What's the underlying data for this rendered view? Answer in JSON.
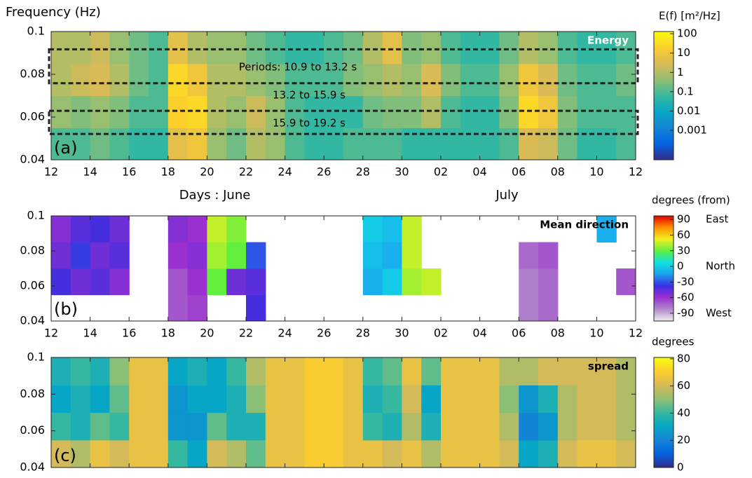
{
  "chart_data": [
    {
      "type": "heatmap",
      "ylabel": "Frequency (Hz)",
      "title": "Energy",
      "panel_label": "(a)",
      "xlabel": "Days : June",
      "xlabel2": "July",
      "x": [
        0.5,
        1.5,
        2.5,
        3.5,
        4.5,
        5.5,
        6.5,
        7.5,
        8.5,
        9.5,
        10.5,
        11.5,
        12.5,
        13.5,
        14.5,
        15.5,
        16.5,
        17.5,
        18.5,
        19.5,
        20.5,
        21.5,
        22.5,
        23.5,
        24.5,
        25.5,
        26.5,
        27.5,
        28.5,
        29.5
      ],
      "y": [
        0.0475,
        0.0625,
        0.0775,
        0.0925
      ],
      "z": [
        [
          0.1,
          0.1,
          0.2,
          0.1,
          0.05,
          0.05,
          5,
          10,
          0.5,
          0.2,
          1,
          0.5,
          0.1,
          0.05,
          0.05,
          0.1,
          0.1,
          0.1,
          0.05,
          0.05,
          0.05,
          0.05,
          0.05,
          0.1,
          3,
          2,
          0.2,
          0.05,
          0.05,
          0.1
        ],
        [
          0.5,
          0.3,
          0.5,
          0.3,
          0.1,
          0.1,
          20,
          30,
          1,
          0.5,
          2,
          0.5,
          0.1,
          0.05,
          0.05,
          0.05,
          0.2,
          0.3,
          0.3,
          1,
          0.1,
          0.05,
          0.05,
          0.3,
          30,
          10,
          0.3,
          0.1,
          0.1,
          0.1
        ],
        [
          1,
          2,
          3,
          1,
          0.2,
          0.1,
          30,
          10,
          1,
          1,
          0.5,
          0.3,
          0.1,
          0.1,
          0.1,
          0.3,
          0.5,
          1,
          0.5,
          3,
          0.3,
          0.1,
          0.1,
          0.5,
          10,
          3,
          0.2,
          0.1,
          0.1,
          0.2
        ],
        [
          1,
          1,
          2,
          0.5,
          0.2,
          0.1,
          5,
          1,
          0.5,
          0.5,
          0.2,
          0.1,
          0.05,
          0.05,
          0.1,
          0.2,
          1,
          5,
          0.3,
          0.5,
          0.1,
          0.05,
          0.05,
          0.2,
          1,
          0.5,
          0.1,
          0.05,
          0.05,
          0.1
        ]
      ],
      "xlim": [
        0,
        30
      ],
      "ylim": [
        0.04,
        0.1
      ],
      "yticks": [
        0.04,
        0.06,
        0.08,
        0.1
      ],
      "xticks": [
        {
          "value": 0,
          "label": "12"
        },
        {
          "value": 2,
          "label": "14"
        },
        {
          "value": 4,
          "label": "16"
        },
        {
          "value": 6,
          "label": "18"
        },
        {
          "value": 8,
          "label": "20"
        },
        {
          "value": 10,
          "label": "22"
        },
        {
          "value": 12,
          "label": "24"
        },
        {
          "value": 14,
          "label": "26"
        },
        {
          "value": 16,
          "label": "28"
        },
        {
          "value": 18,
          "label": "30"
        },
        {
          "value": 20,
          "label": "02"
        },
        {
          "value": 22,
          "label": "04"
        },
        {
          "value": 24,
          "label": "06"
        },
        {
          "value": 26,
          "label": "08"
        },
        {
          "value": 28,
          "label": "10"
        },
        {
          "value": 30,
          "label": "12"
        }
      ],
      "boxes": [
        {
          "label": "Periods: 10.9 to 13.2 s",
          "ylim": [
            0.0758,
            0.0917
          ]
        },
        {
          "label": "13.2 to 15.9 s"
        },
        {
          "label": "15.9 to 19.2 s",
          "ylim": [
            0.0521,
            0.0629
          ]
        }
      ],
      "colorbar": {
        "title": "E(f) [m²/Hz]",
        "log": true,
        "lim": [
          3e-05,
          130
        ],
        "ticks": [
          {
            "value": 100,
            "label": "100"
          },
          {
            "value": 10,
            "label": "10"
          },
          {
            "value": 1,
            "label": "1"
          },
          {
            "value": 0.1,
            "label": "0.1"
          },
          {
            "value": 0.01,
            "label": "0.01"
          },
          {
            "value": 0.001,
            "label": "0.001"
          }
        ],
        "colormap": [
          "#352a87",
          "#0363e1",
          "#1485d4",
          "#06a7c6",
          "#38b99e",
          "#92bf73",
          "#d9ba56",
          "#fcce2e",
          "#f9fb0e"
        ]
      }
    },
    {
      "type": "heatmap",
      "title": "Mean direction",
      "panel_label": "(b)",
      "x": [
        0.5,
        1.5,
        2.5,
        3.5,
        4.5,
        5.5,
        6.5,
        7.5,
        8.5,
        9.5,
        10.5,
        11.5,
        12.5,
        13.5,
        14.5,
        15.5,
        16.5,
        17.5,
        18.5,
        19.5,
        20.5,
        21.5,
        22.5,
        23.5,
        24.5,
        25.5,
        26.5,
        27.5,
        28.5,
        29.5
      ],
      "y": [
        0.0475,
        0.0625,
        0.0775,
        0.0925
      ],
      "z": [
        [
          null,
          null,
          null,
          null,
          null,
          null,
          -70,
          -65,
          null,
          null,
          -40,
          null,
          null,
          null,
          null,
          null,
          null,
          null,
          null,
          null,
          null,
          null,
          null,
          null,
          -80,
          -75,
          null,
          null,
          null,
          null
        ],
        [
          -40,
          -50,
          -45,
          -55,
          null,
          null,
          -70,
          -60,
          30,
          -50,
          -45,
          null,
          null,
          null,
          null,
          null,
          -10,
          0,
          40,
          45,
          null,
          null,
          null,
          null,
          -80,
          -75,
          null,
          null,
          null,
          -70
        ],
        [
          -50,
          -35,
          -50,
          -45,
          null,
          null,
          -60,
          -55,
          40,
          30,
          -30,
          null,
          null,
          null,
          null,
          null,
          -5,
          -10,
          45,
          null,
          null,
          null,
          null,
          null,
          -75,
          -70,
          null,
          null,
          null,
          null
        ],
        [
          -55,
          -45,
          -40,
          -50,
          null,
          null,
          -55,
          -60,
          45,
          35,
          null,
          null,
          null,
          null,
          null,
          null,
          0,
          -5,
          45,
          null,
          null,
          null,
          null,
          null,
          null,
          null,
          null,
          null,
          -10,
          null
        ]
      ],
      "xlim": [
        0,
        30
      ],
      "ylim": [
        0.04,
        0.1
      ],
      "yticks": [
        0.04,
        0.06,
        0.08,
        0.1
      ],
      "xticks": [
        {
          "value": 0,
          "label": "12"
        },
        {
          "value": 2,
          "label": "14"
        },
        {
          "value": 4,
          "label": "16"
        },
        {
          "value": 6,
          "label": "18"
        },
        {
          "value": 8,
          "label": "20"
        },
        {
          "value": 10,
          "label": "22"
        },
        {
          "value": 12,
          "label": "24"
        },
        {
          "value": 14,
          "label": "26"
        },
        {
          "value": 16,
          "label": "28"
        },
        {
          "value": 18,
          "label": "30"
        },
        {
          "value": 20,
          "label": "02"
        },
        {
          "value": 22,
          "label": "04"
        },
        {
          "value": 24,
          "label": "06"
        },
        {
          "value": 26,
          "label": "08"
        },
        {
          "value": 28,
          "label": "10"
        },
        {
          "value": 30,
          "label": "12"
        }
      ],
      "colorbar": {
        "title": "degrees (from)",
        "log": false,
        "lim": [
          -105,
          97
        ],
        "ticks": [
          90,
          60,
          30,
          0,
          -30,
          -60,
          -90
        ],
        "side_labels": [
          {
            "value": 90,
            "label": "East"
          },
          {
            "value": 0,
            "label": "North"
          },
          {
            "value": -90,
            "label": "West"
          }
        ],
        "colormap": [
          "#f0f0f0",
          "#b088c8",
          "#9a30d0",
          "#3a2ee0",
          "#1aa0f0",
          "#10e0e0",
          "#60f040",
          "#f0f020",
          "#ff9000",
          "#e00000"
        ]
      }
    },
    {
      "type": "heatmap",
      "title": "spread",
      "panel_label": "(c)",
      "x": [
        0.5,
        1.5,
        2.5,
        3.5,
        4.5,
        5.5,
        6.5,
        7.5,
        8.5,
        9.5,
        10.5,
        11.5,
        12.5,
        13.5,
        14.5,
        15.5,
        16.5,
        17.5,
        18.5,
        19.5,
        20.5,
        21.5,
        22.5,
        23.5,
        24.5,
        25.5,
        26.5,
        27.5,
        28.5,
        29.5
      ],
      "y": [
        0.0475,
        0.0625,
        0.0775,
        0.0925
      ],
      "z": [
        [
          60,
          55,
          65,
          60,
          65,
          65,
          40,
          30,
          60,
          55,
          45,
          65,
          65,
          70,
          70,
          65,
          65,
          60,
          65,
          55,
          65,
          65,
          65,
          60,
          30,
          35,
          60,
          65,
          65,
          60
        ],
        [
          40,
          35,
          45,
          40,
          65,
          65,
          25,
          25,
          45,
          35,
          35,
          65,
          65,
          70,
          70,
          65,
          40,
          35,
          55,
          35,
          65,
          65,
          65,
          55,
          20,
          25,
          55,
          60,
          60,
          55
        ],
        [
          30,
          35,
          30,
          45,
          65,
          65,
          25,
          30,
          30,
          35,
          50,
          65,
          65,
          70,
          70,
          65,
          35,
          40,
          60,
          30,
          65,
          65,
          65,
          50,
          25,
          35,
          55,
          60,
          60,
          55
        ],
        [
          35,
          40,
          35,
          50,
          65,
          65,
          30,
          35,
          30,
          40,
          55,
          65,
          65,
          70,
          70,
          65,
          40,
          45,
          65,
          45,
          65,
          65,
          65,
          55,
          55,
          60,
          60,
          60,
          60,
          55
        ]
      ],
      "xlim": [
        0,
        30
      ],
      "ylim": [
        0.04,
        0.1
      ],
      "yticks": [
        0.04,
        0.06,
        0.08,
        0.1
      ],
      "xticks": [
        0,
        2,
        4,
        6,
        8,
        10,
        12,
        14,
        16,
        18,
        20,
        22,
        24,
        26,
        28,
        30
      ],
      "colorbar": {
        "title": "degrees",
        "log": false,
        "lim": [
          0,
          81
        ],
        "ticks": [
          80,
          60,
          40,
          20,
          0
        ],
        "colormap": [
          "#352a87",
          "#0363e1",
          "#1485d4",
          "#06a7c6",
          "#38b99e",
          "#92bf73",
          "#d9ba56",
          "#fcce2e",
          "#f9fb0e"
        ]
      }
    }
  ]
}
